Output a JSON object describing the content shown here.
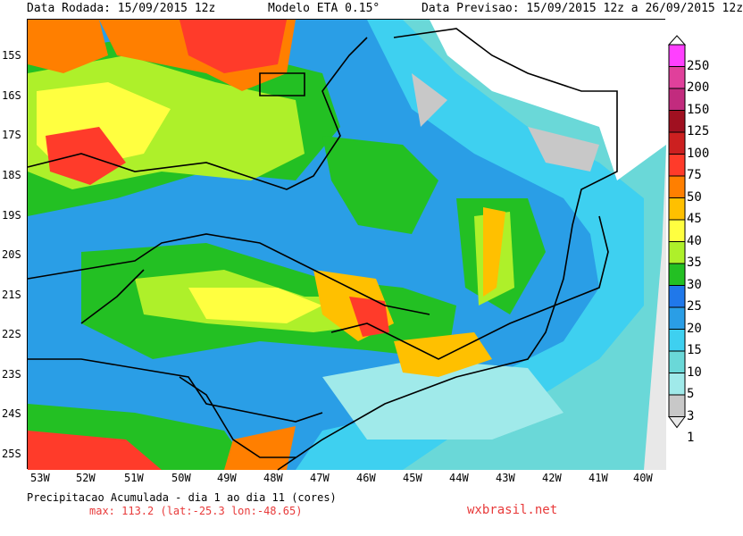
{
  "header": {
    "run_date": "Data Rodada: 15/09/2015 12z",
    "model": "Modelo ETA 0.15°",
    "forecast": "Data Previsao: 15/09/2015 12z a 26/09/2015 12z"
  },
  "lat_labels": [
    "15S",
    "16S",
    "17S",
    "18S",
    "19S",
    "20S",
    "21S",
    "22S",
    "23S",
    "24S",
    "25S"
  ],
  "lon_labels": [
    "53W",
    "52W",
    "51W",
    "50W",
    "49W",
    "48W",
    "47W",
    "46W",
    "45W",
    "44W",
    "43W",
    "42W",
    "41W",
    "40W"
  ],
  "colorbar": {
    "labels": [
      "250",
      "200",
      "150",
      "125",
      "100",
      "75",
      "50",
      "45",
      "40",
      "35",
      "30",
      "25",
      "20",
      "15",
      "10",
      "5",
      "3",
      "1"
    ],
    "colors": [
      "#ffffff",
      "#ff40ff",
      "#e0409b",
      "#c22b7e",
      "#a01020",
      "#cc2020",
      "#ff3b2a",
      "#ff7f00",
      "#ffc000",
      "#ffff40",
      "#aef02a",
      "#23c023",
      "#2078ea",
      "#2a9ee6",
      "#3ed0f0",
      "#6ad8d8",
      "#a0eaea",
      "#c8c8c8",
      "#e8e8e8"
    ]
  },
  "footer": {
    "title": "Precipitacao Acumulada - dia 1 ao dia 11 (cores)",
    "max": "max: 113.2 (lat:-25.3 lon:-48.65)",
    "brand": "wxbrasil.net"
  }
}
